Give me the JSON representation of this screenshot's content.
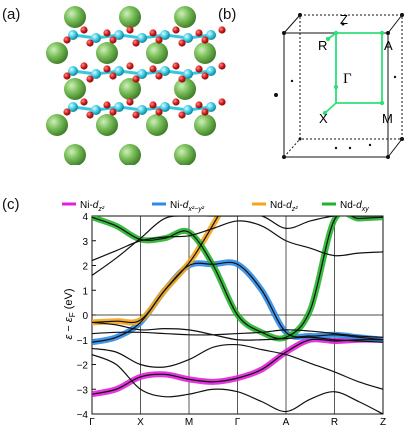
{
  "panels": {
    "a": "(a)",
    "b": "(b)",
    "c": "(c)"
  },
  "brillouin_zone": {
    "points": [
      {
        "label": "Z"
      },
      {
        "label": "R"
      },
      {
        "label": "A"
      },
      {
        "label": "Γ"
      },
      {
        "label": "X"
      },
      {
        "label": "M"
      }
    ],
    "path_color": "#2ee07a"
  },
  "crystal_structure": {
    "large_atom_color": "#67b048",
    "small_red_atom_color": "#d11a1a",
    "small_cyan_atom_color": "#35c8e0"
  },
  "chart_data": {
    "type": "line",
    "legend": [
      {
        "name": "Ni-d_{z^2}",
        "text_main": "Ni-",
        "text_d": "d",
        "sub": "z²",
        "color": "#e11fdc"
      },
      {
        "name": "Ni-d_{x^2-y^2}",
        "text_main": "Ni-",
        "text_d": "d",
        "sub": "x²−y²",
        "color": "#2c8be4"
      },
      {
        "name": "Nd-d_{z^2}",
        "text_main": "Nd-",
        "text_d": "d",
        "sub": "z²",
        "color": "#f4a51d"
      },
      {
        "name": "Nd-d_{xy}",
        "text_main": "Nd-",
        "text_d": "d",
        "sub": "xy",
        "color": "#23b22c"
      }
    ],
    "ylabel": "ε − ε_F (eV)",
    "ylabel_parts": {
      "eps": "ε",
      "minus": " − ",
      "epsF": "ε",
      "sub": "F",
      "unit": " (eV)"
    },
    "ylim": [
      -4,
      4
    ],
    "yticks": [
      "4",
      "3",
      "2",
      "1",
      "0",
      "−1",
      "−2",
      "−3",
      "−4"
    ],
    "ytick_values": [
      4,
      3,
      2,
      1,
      0,
      -1,
      -2,
      -3,
      -4
    ],
    "xticks": [
      "Γ",
      "X",
      "M",
      "Γ",
      "A",
      "R",
      "Z"
    ],
    "xtick_positions": [
      0,
      1,
      2,
      3,
      4,
      5,
      6
    ],
    "xlim": [
      0,
      6
    ],
    "highlight_bands": [
      {
        "series": "Ni-d_{z^2}",
        "color": "#e11fdc",
        "x": [
          0,
          0.5,
          1.0,
          1.5,
          2.0,
          2.5,
          3.0,
          3.5,
          4.0,
          4.5,
          5.0,
          5.5,
          6.0
        ],
        "y": [
          -3.2,
          -3.0,
          -2.5,
          -2.4,
          -2.6,
          -2.7,
          -2.55,
          -2.2,
          -1.5,
          -1.0,
          -1.05,
          -1.0,
          -1.0
        ]
      },
      {
        "series": "Ni-d_{x^2-y^2}",
        "color": "#2c8be4",
        "x": [
          0,
          0.5,
          1.0,
          1.5,
          2.0,
          2.5,
          3.0,
          3.5,
          4.0,
          4.5,
          5.0,
          5.5,
          6.0
        ],
        "y": [
          -1.1,
          -0.9,
          -0.3,
          1.0,
          2.0,
          2.05,
          2.05,
          1.0,
          -0.7,
          -0.85,
          -0.8,
          -0.9,
          -1.0
        ]
      },
      {
        "series": "Nd-d_{z^2}",
        "color": "#f4a51d",
        "x": [
          0,
          0.5,
          1.0,
          1.5,
          2.0,
          2.3,
          2.6
        ],
        "y": [
          -0.3,
          -0.25,
          -0.2,
          1.0,
          2.1,
          3.0,
          4.0
        ]
      },
      {
        "series": "Nd-d_{xy}",
        "color": "#23b22c",
        "x": [
          0,
          0.5,
          1.0,
          1.5,
          2.0,
          2.5,
          3.0,
          3.5,
          4.0,
          4.5,
          5.0,
          5.5,
          6.0
        ],
        "y": [
          3.95,
          3.6,
          3.05,
          3.1,
          3.35,
          2.0,
          0.0,
          -0.7,
          -0.9,
          0.2,
          3.85,
          3.9,
          3.95
        ]
      }
    ],
    "plain_bands": [
      {
        "x": [
          0,
          0.5,
          1.0,
          1.5,
          2.0,
          2.5,
          3.0,
          3.5,
          4.0,
          4.5,
          5.0,
          5.5,
          6.0
        ],
        "y": [
          -0.75,
          -0.7,
          -0.7,
          -0.75,
          -0.8,
          -0.8,
          -0.75,
          -0.7,
          -0.6,
          -0.65,
          -0.75,
          -0.85,
          -0.9
        ]
      },
      {
        "x": [
          0,
          0.5,
          1.0,
          1.5,
          2.0,
          2.5,
          3.0,
          3.5,
          4.0,
          4.5,
          5.0,
          5.5,
          6.0
        ],
        "y": [
          -1.35,
          -1.5,
          -2.0,
          -2.1,
          -1.8,
          -1.3,
          -1.2,
          -1.4,
          -1.6,
          -1.95,
          -2.3,
          -2.7,
          -3.0
        ]
      },
      {
        "x": [
          0,
          0.5,
          1.0,
          1.5,
          2.0,
          2.5,
          3.0,
          3.5,
          4.0,
          4.5,
          5.0,
          5.5,
          6.0
        ],
        "y": [
          -1.6,
          -2.0,
          -3.0,
          -3.3,
          -3.2,
          -3.0,
          -3.1,
          -3.5,
          -3.9,
          -3.4,
          -3.1,
          -3.5,
          -4.0
        ]
      },
      {
        "x": [
          0,
          0.5,
          1.0,
          1.5,
          2.0,
          2.5,
          3.0,
          3.5,
          4.0,
          4.5,
          5.0,
          5.5,
          6.0
        ],
        "y": [
          2.2,
          2.6,
          3.0,
          3.15,
          3.2,
          3.5,
          3.8,
          3.6,
          3.0,
          2.7,
          2.4,
          2.5,
          2.55
        ]
      },
      {
        "x": [
          0,
          0.5,
          1.0,
          1.5,
          2.0,
          2.5,
          3.0,
          3.5,
          4.0,
          4.5,
          5.0,
          5.5,
          6.0
        ],
        "y": [
          1.6,
          2.3,
          3.1,
          3.9,
          4.0,
          4.0,
          4.0,
          4.0,
          3.5,
          3.8,
          4.0,
          4.0,
          4.0
        ]
      },
      {
        "x": [
          0,
          0.5,
          1.0,
          1.5,
          2.0,
          2.5,
          3.0,
          3.5,
          4.0,
          4.5,
          5.0,
          5.5,
          6.0
        ],
        "y": [
          -0.3,
          -0.4,
          -0.6,
          -0.55,
          -0.6,
          -0.8,
          -1.0,
          -1.0,
          -0.95,
          -0.9,
          -1.0,
          -1.05,
          -1.1
        ]
      }
    ],
    "grid_vertical_lines_at_ticks": true,
    "zero_line": true
  }
}
